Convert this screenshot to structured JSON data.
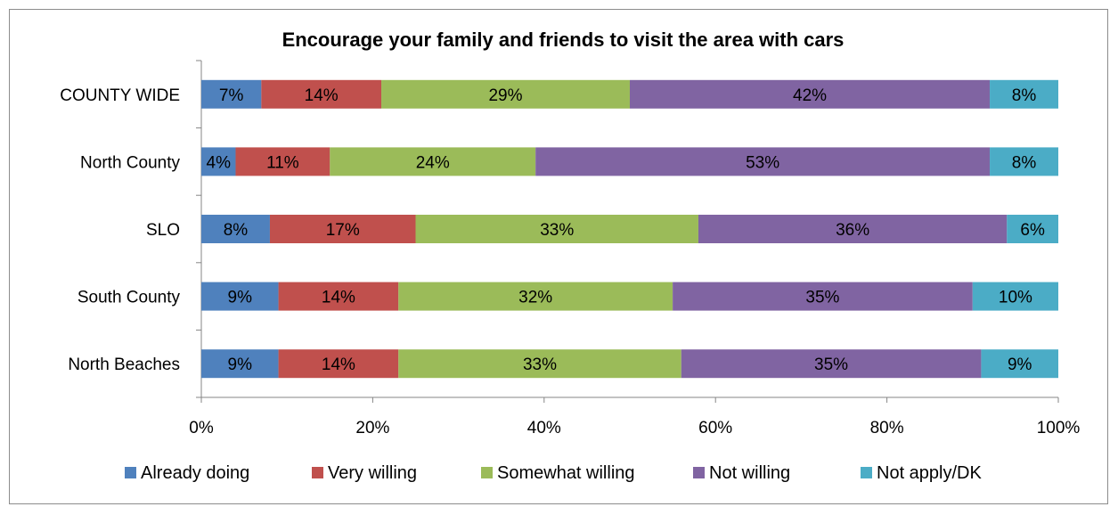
{
  "chart_data": {
    "type": "bar",
    "orientation": "horizontal",
    "stacked": true,
    "title": "Encourage your family and friends to visit the area with cars",
    "categories": [
      "COUNTY WIDE",
      "North County",
      "SLO",
      "South County",
      "North Beaches"
    ],
    "series": [
      {
        "name": "Already doing",
        "color": "#4F81BD",
        "values": [
          7,
          4,
          8,
          9,
          9
        ]
      },
      {
        "name": "Very willing",
        "color": "#C0504D",
        "values": [
          14,
          11,
          17,
          14,
          14
        ]
      },
      {
        "name": "Somewhat willing",
        "color": "#9BBB59",
        "values": [
          29,
          24,
          33,
          32,
          33
        ]
      },
      {
        "name": "Not willing",
        "color": "#8064A2",
        "values": [
          42,
          53,
          36,
          35,
          35
        ]
      },
      {
        "name": "Not apply/DK",
        "color": "#4BACC6",
        "values": [
          8,
          8,
          6,
          10,
          9
        ]
      }
    ],
    "value_labels_suffix": "%",
    "xlim": [
      0,
      100
    ],
    "x_ticks": [
      "0%",
      "20%",
      "40%",
      "60%",
      "80%",
      "100%"
    ],
    "grid": false,
    "legend_position": "bottom"
  }
}
